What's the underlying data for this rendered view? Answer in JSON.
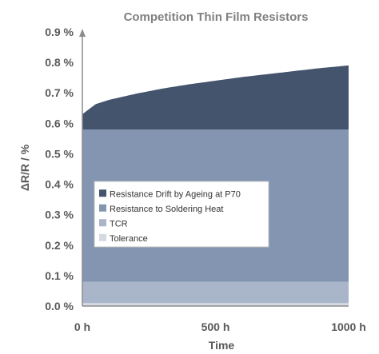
{
  "chart_data": {
    "type": "area",
    "title": "Competition Thin Film Resistors",
    "xlabel": "Time",
    "ylabel": "ΔR/R / %",
    "xlim": [
      0,
      1000
    ],
    "ylim": [
      0,
      0.9
    ],
    "x_ticks": [
      {
        "value": 0,
        "label": "0 h"
      },
      {
        "value": 500,
        "label": "500 h"
      },
      {
        "value": 1000,
        "label": "1000 h"
      }
    ],
    "y_ticks": [
      {
        "value": 0.0,
        "label": "0.0 %"
      },
      {
        "value": 0.1,
        "label": "0.1 %"
      },
      {
        "value": 0.2,
        "label": "0.2 %"
      },
      {
        "value": 0.3,
        "label": "0.3 %"
      },
      {
        "value": 0.4,
        "label": "0.4 %"
      },
      {
        "value": 0.5,
        "label": "0.5 %"
      },
      {
        "value": 0.6,
        "label": "0.6 %"
      },
      {
        "value": 0.7,
        "label": "0.7 %"
      },
      {
        "value": 0.8,
        "label": "0.8 %"
      },
      {
        "value": 0.9,
        "label": "0.9 %"
      }
    ],
    "grid": false,
    "stacked": true,
    "legend_position": "center-left",
    "x": [
      0,
      50,
      100,
      200,
      300,
      400,
      500,
      600,
      700,
      800,
      900,
      1000
    ],
    "series": [
      {
        "name": "Tolerance",
        "color": "#d4d9e3",
        "values": [
          0.01,
          0.01,
          0.01,
          0.01,
          0.01,
          0.01,
          0.01,
          0.01,
          0.01,
          0.01,
          0.01,
          0.01
        ]
      },
      {
        "name": "TCR",
        "color": "#a9b5c9",
        "values": [
          0.07,
          0.07,
          0.07,
          0.07,
          0.07,
          0.07,
          0.07,
          0.07,
          0.07,
          0.07,
          0.07,
          0.07
        ]
      },
      {
        "name": "Resistance to Soldering Heat",
        "color": "#8395b1",
        "values": [
          0.5,
          0.5,
          0.5,
          0.5,
          0.5,
          0.5,
          0.5,
          0.5,
          0.5,
          0.5,
          0.5,
          0.5
        ]
      },
      {
        "name": "Resistance Drift by Ageing at P70",
        "color": "#44546d",
        "values": [
          0.05,
          0.083,
          0.097,
          0.117,
          0.134,
          0.148,
          0.16,
          0.172,
          0.182,
          0.192,
          0.202,
          0.21
        ]
      }
    ],
    "legend_order": [
      "Resistance Drift by Ageing at P70",
      "Resistance to Soldering Heat",
      "TCR",
      "Tolerance"
    ],
    "axis_color": "#8c8c8c"
  }
}
